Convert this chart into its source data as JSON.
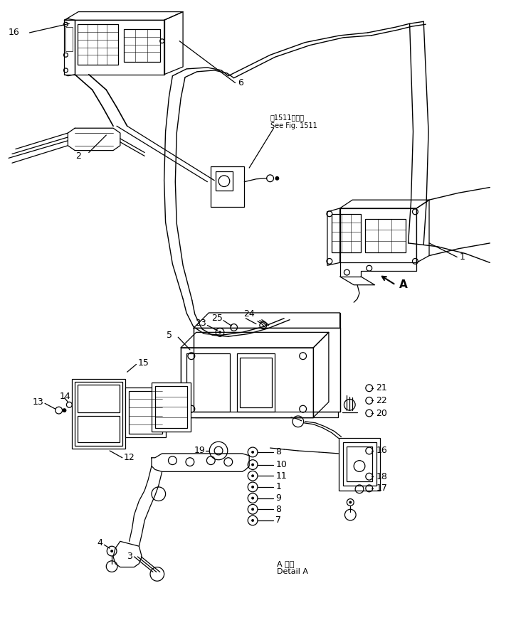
{
  "bg_color": "#ffffff",
  "line_color": "#000000",
  "fig_width": 7.18,
  "fig_height": 8.72,
  "dpi": 100,
  "note_jp": "第1511図参照",
  "note_en": "See Fig. 1511",
  "detail_jp": "A 詳細",
  "detail_en": "Detail A"
}
